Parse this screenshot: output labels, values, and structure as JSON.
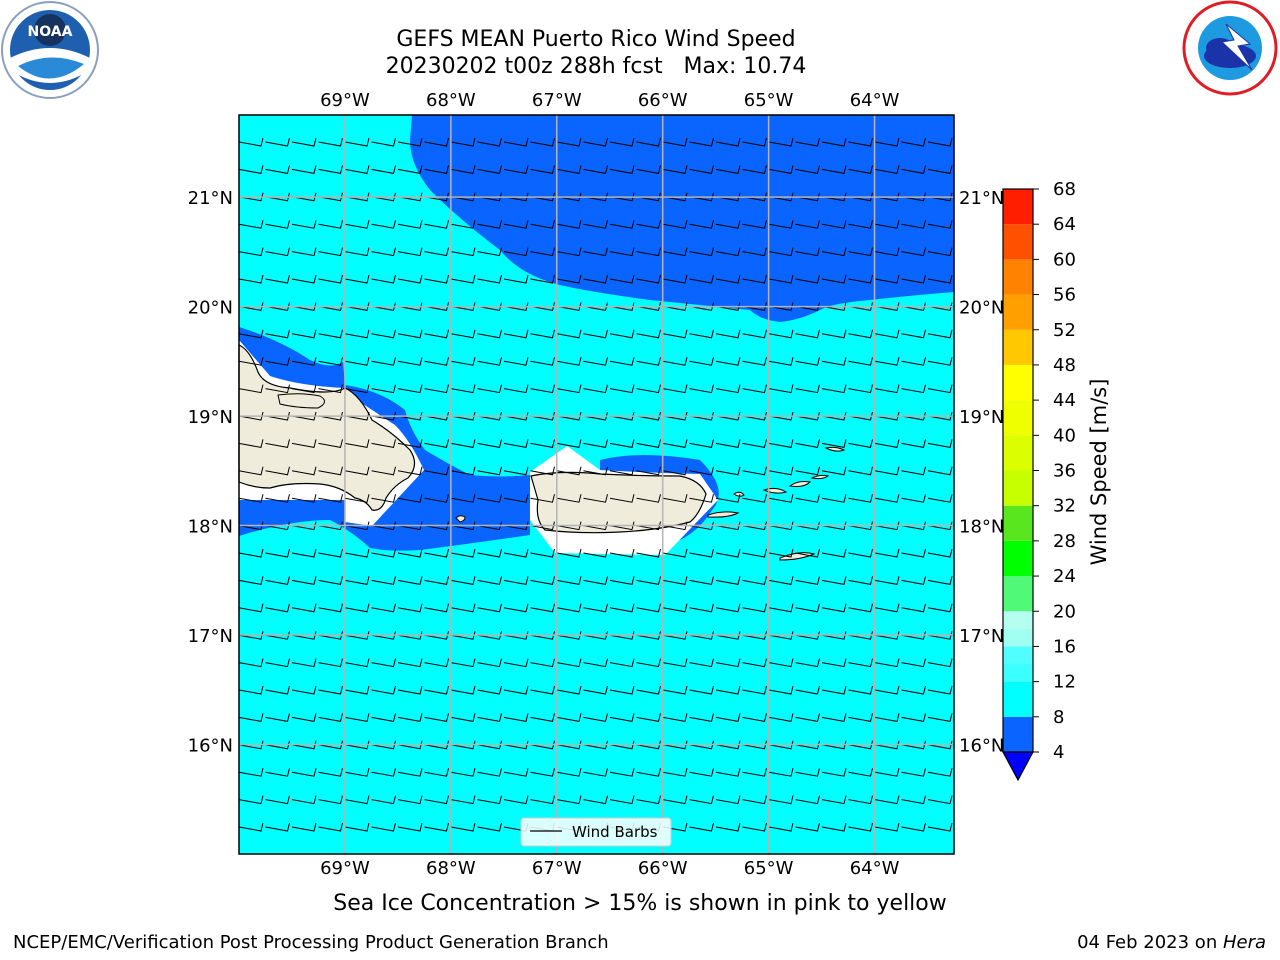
{
  "title": "GEFS MEAN Puerto Rico Wind Speed",
  "subtitle": "20230202 t00z 288h fcst   Max: 10.74",
  "caption": "Sea Ice Concentration > 15% is shown in pink to yellow",
  "footer": {
    "left": "NCEP/EMC/Verification Post Processing Product Generation Branch",
    "date": "04 Feb 2023 on ",
    "host": "Hera"
  },
  "logos": {
    "left": "noaa-logo",
    "right": "nws-logo",
    "left_text": "NOAA"
  },
  "colors": {
    "land": "#efecdc",
    "dark_blue": "#0a64ff",
    "cyan": "#00ffff",
    "grid": "#b4b4b4"
  },
  "chart_data": {
    "type": "heatmap",
    "title": "GEFS MEAN Puerto Rico Wind Speed",
    "subtitle": "20230202 t00z 288h fcst   Max: 10.74",
    "lon_ticks": [
      "69°W",
      "68°W",
      "67°W",
      "66°W",
      "65°W",
      "64°W"
    ],
    "lat_ticks": [
      "21°N",
      "20°N",
      "19°N",
      "18°N",
      "17°N",
      "16°N"
    ],
    "xlim": [
      -70.0,
      -63.25
    ],
    "ylim": [
      15.0,
      21.75
    ],
    "grid": true,
    "legend": {
      "label": "Wind Barbs",
      "placement": "bottom-center"
    },
    "colorbar": {
      "label": "Wind Speed [m/s]",
      "ticks": [
        "68",
        "64",
        "60",
        "56",
        "52",
        "48",
        "44",
        "40",
        "36",
        "32",
        "28",
        "24",
        "20",
        "16",
        "12",
        "8",
        "4"
      ],
      "bands": [
        {
          "from": 4,
          "to": 8,
          "color": "#0a64ff"
        },
        {
          "from": 8,
          "to": 12,
          "color": "#00ffff"
        },
        {
          "from": 12,
          "to": 14,
          "color": "#3cffff"
        },
        {
          "from": 14,
          "to": 16,
          "color": "#50ffff"
        },
        {
          "from": 16,
          "to": 18,
          "color": "#a0fff0"
        },
        {
          "from": 18,
          "to": 20,
          "color": "#b4fff0"
        },
        {
          "from": 20,
          "to": 24,
          "color": "#50fa78"
        },
        {
          "from": 24,
          "to": 28,
          "color": "#00ff00"
        },
        {
          "from": 28,
          "to": 32,
          "color": "#5ae61e"
        },
        {
          "from": 32,
          "to": 36,
          "color": "#c8ff00"
        },
        {
          "from": 36,
          "to": 40,
          "color": "#dcff00"
        },
        {
          "from": 40,
          "to": 44,
          "color": "#f0ff00"
        },
        {
          "from": 44,
          "to": 48,
          "color": "#ffff00"
        },
        {
          "from": 48,
          "to": 52,
          "color": "#ffc800"
        },
        {
          "from": 52,
          "to": 56,
          "color": "#ffa000"
        },
        {
          "from": 56,
          "to": 60,
          "color": "#ff8200"
        },
        {
          "from": 60,
          "to": 64,
          "color": "#ff5000"
        },
        {
          "from": 64,
          "to": 68,
          "color": "#ff1e00"
        }
      ],
      "extend_low_color": "#0000ff"
    },
    "max_value": 10.74,
    "units": "m/s"
  }
}
